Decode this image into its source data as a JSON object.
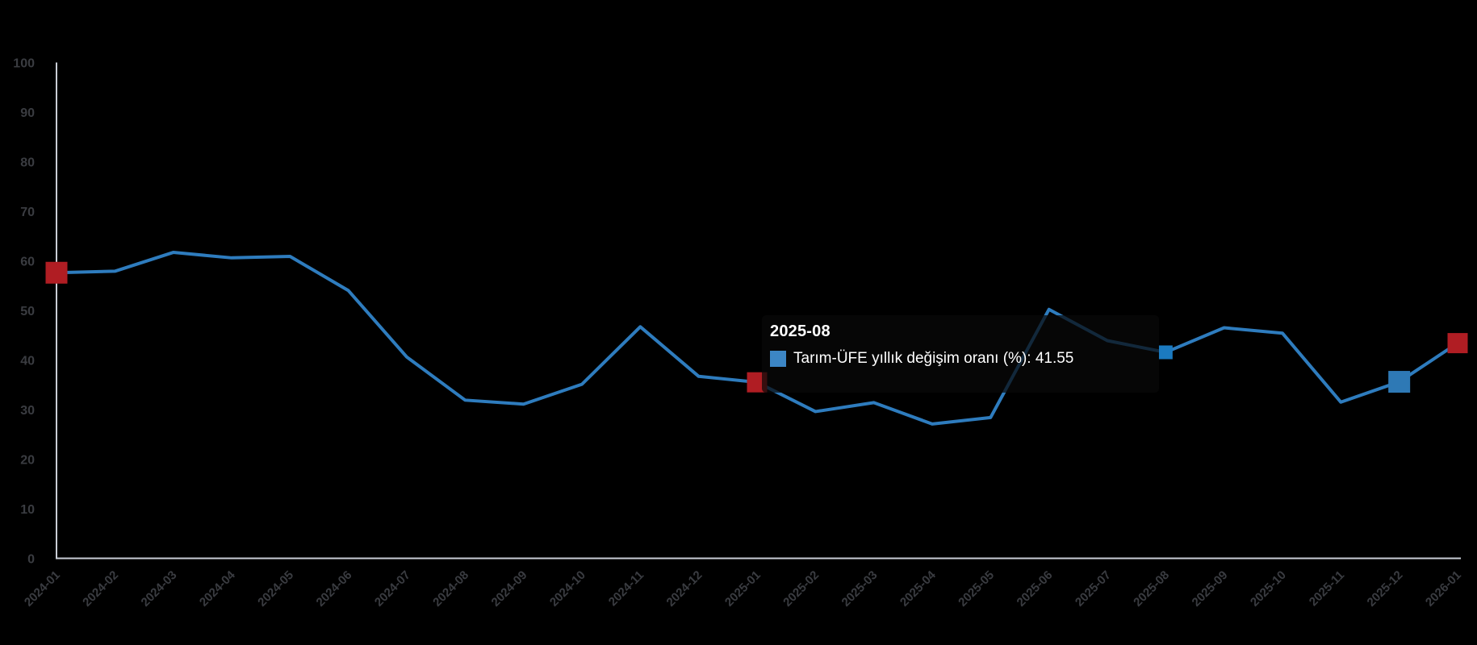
{
  "chart_data": {
    "type": "line",
    "title": "",
    "xlabel": "",
    "ylabel": "",
    "ylim": [
      0,
      100
    ],
    "y_ticks": [
      "0",
      "10",
      "20",
      "30",
      "40",
      "50",
      "60",
      "70",
      "80",
      "90",
      "100"
    ],
    "grid": "off",
    "legend": "none",
    "categories": [
      "2024-01",
      "2024-02",
      "2024-03",
      "2024-04",
      "2024-05",
      "2024-06",
      "2024-07",
      "2024-08",
      "2024-09",
      "2024-10",
      "2024-11",
      "2024-12",
      "2025-01",
      "2025-02",
      "2025-03",
      "2025-04",
      "2025-05",
      "2025-06",
      "2025-07",
      "2025-08",
      "2025-09",
      "2025-10",
      "2025-11",
      "2025-12",
      "2026-01"
    ],
    "series": [
      {
        "name": "Tarım-ÜFE yıllık değişim oranı (%)",
        "values": [
          57.6,
          57.9,
          61.7,
          60.6,
          60.9,
          54.0,
          40.6,
          31.9,
          31.1,
          35.1,
          46.7,
          36.7,
          35.5,
          29.6,
          31.4,
          27.1,
          28.4,
          50.2,
          43.9,
          41.55,
          46.5,
          45.4,
          31.5,
          35.6,
          43.4
        ]
      }
    ],
    "special_markers": [
      {
        "category": "2024-01",
        "index": 0,
        "color_key": "red_marker",
        "size": 27
      },
      {
        "category": "2025-01",
        "index": 12,
        "color_key": "red_marker",
        "size": 25
      },
      {
        "category": "2025-08",
        "index": 19,
        "color_key": "hover_marker",
        "size": 17
      },
      {
        "category": "2025-12",
        "index": 23,
        "color_key": "blue_marker",
        "size": 27
      },
      {
        "category": "2026-01",
        "index": 24,
        "color_key": "red_marker",
        "size": 25
      }
    ],
    "colors": {
      "background": "#000000",
      "line": "#2e7cbe",
      "axis": "#c9cdd6",
      "tick_label": "#3a3c41",
      "red_marker": "#b01d23",
      "blue_marker": "#2e79b5",
      "hover_marker": "#1b7ac0",
      "legend_square": "#3c86c5",
      "tooltip_text": "#ffffff"
    }
  },
  "tooltip": {
    "title": "2025-08",
    "series_label": "Tarım-ÜFE yıllık değişim oranı (%)",
    "value": "41.55",
    "text": "Tarım-ÜFE yıllık değişim oranı (%): 41.55"
  }
}
